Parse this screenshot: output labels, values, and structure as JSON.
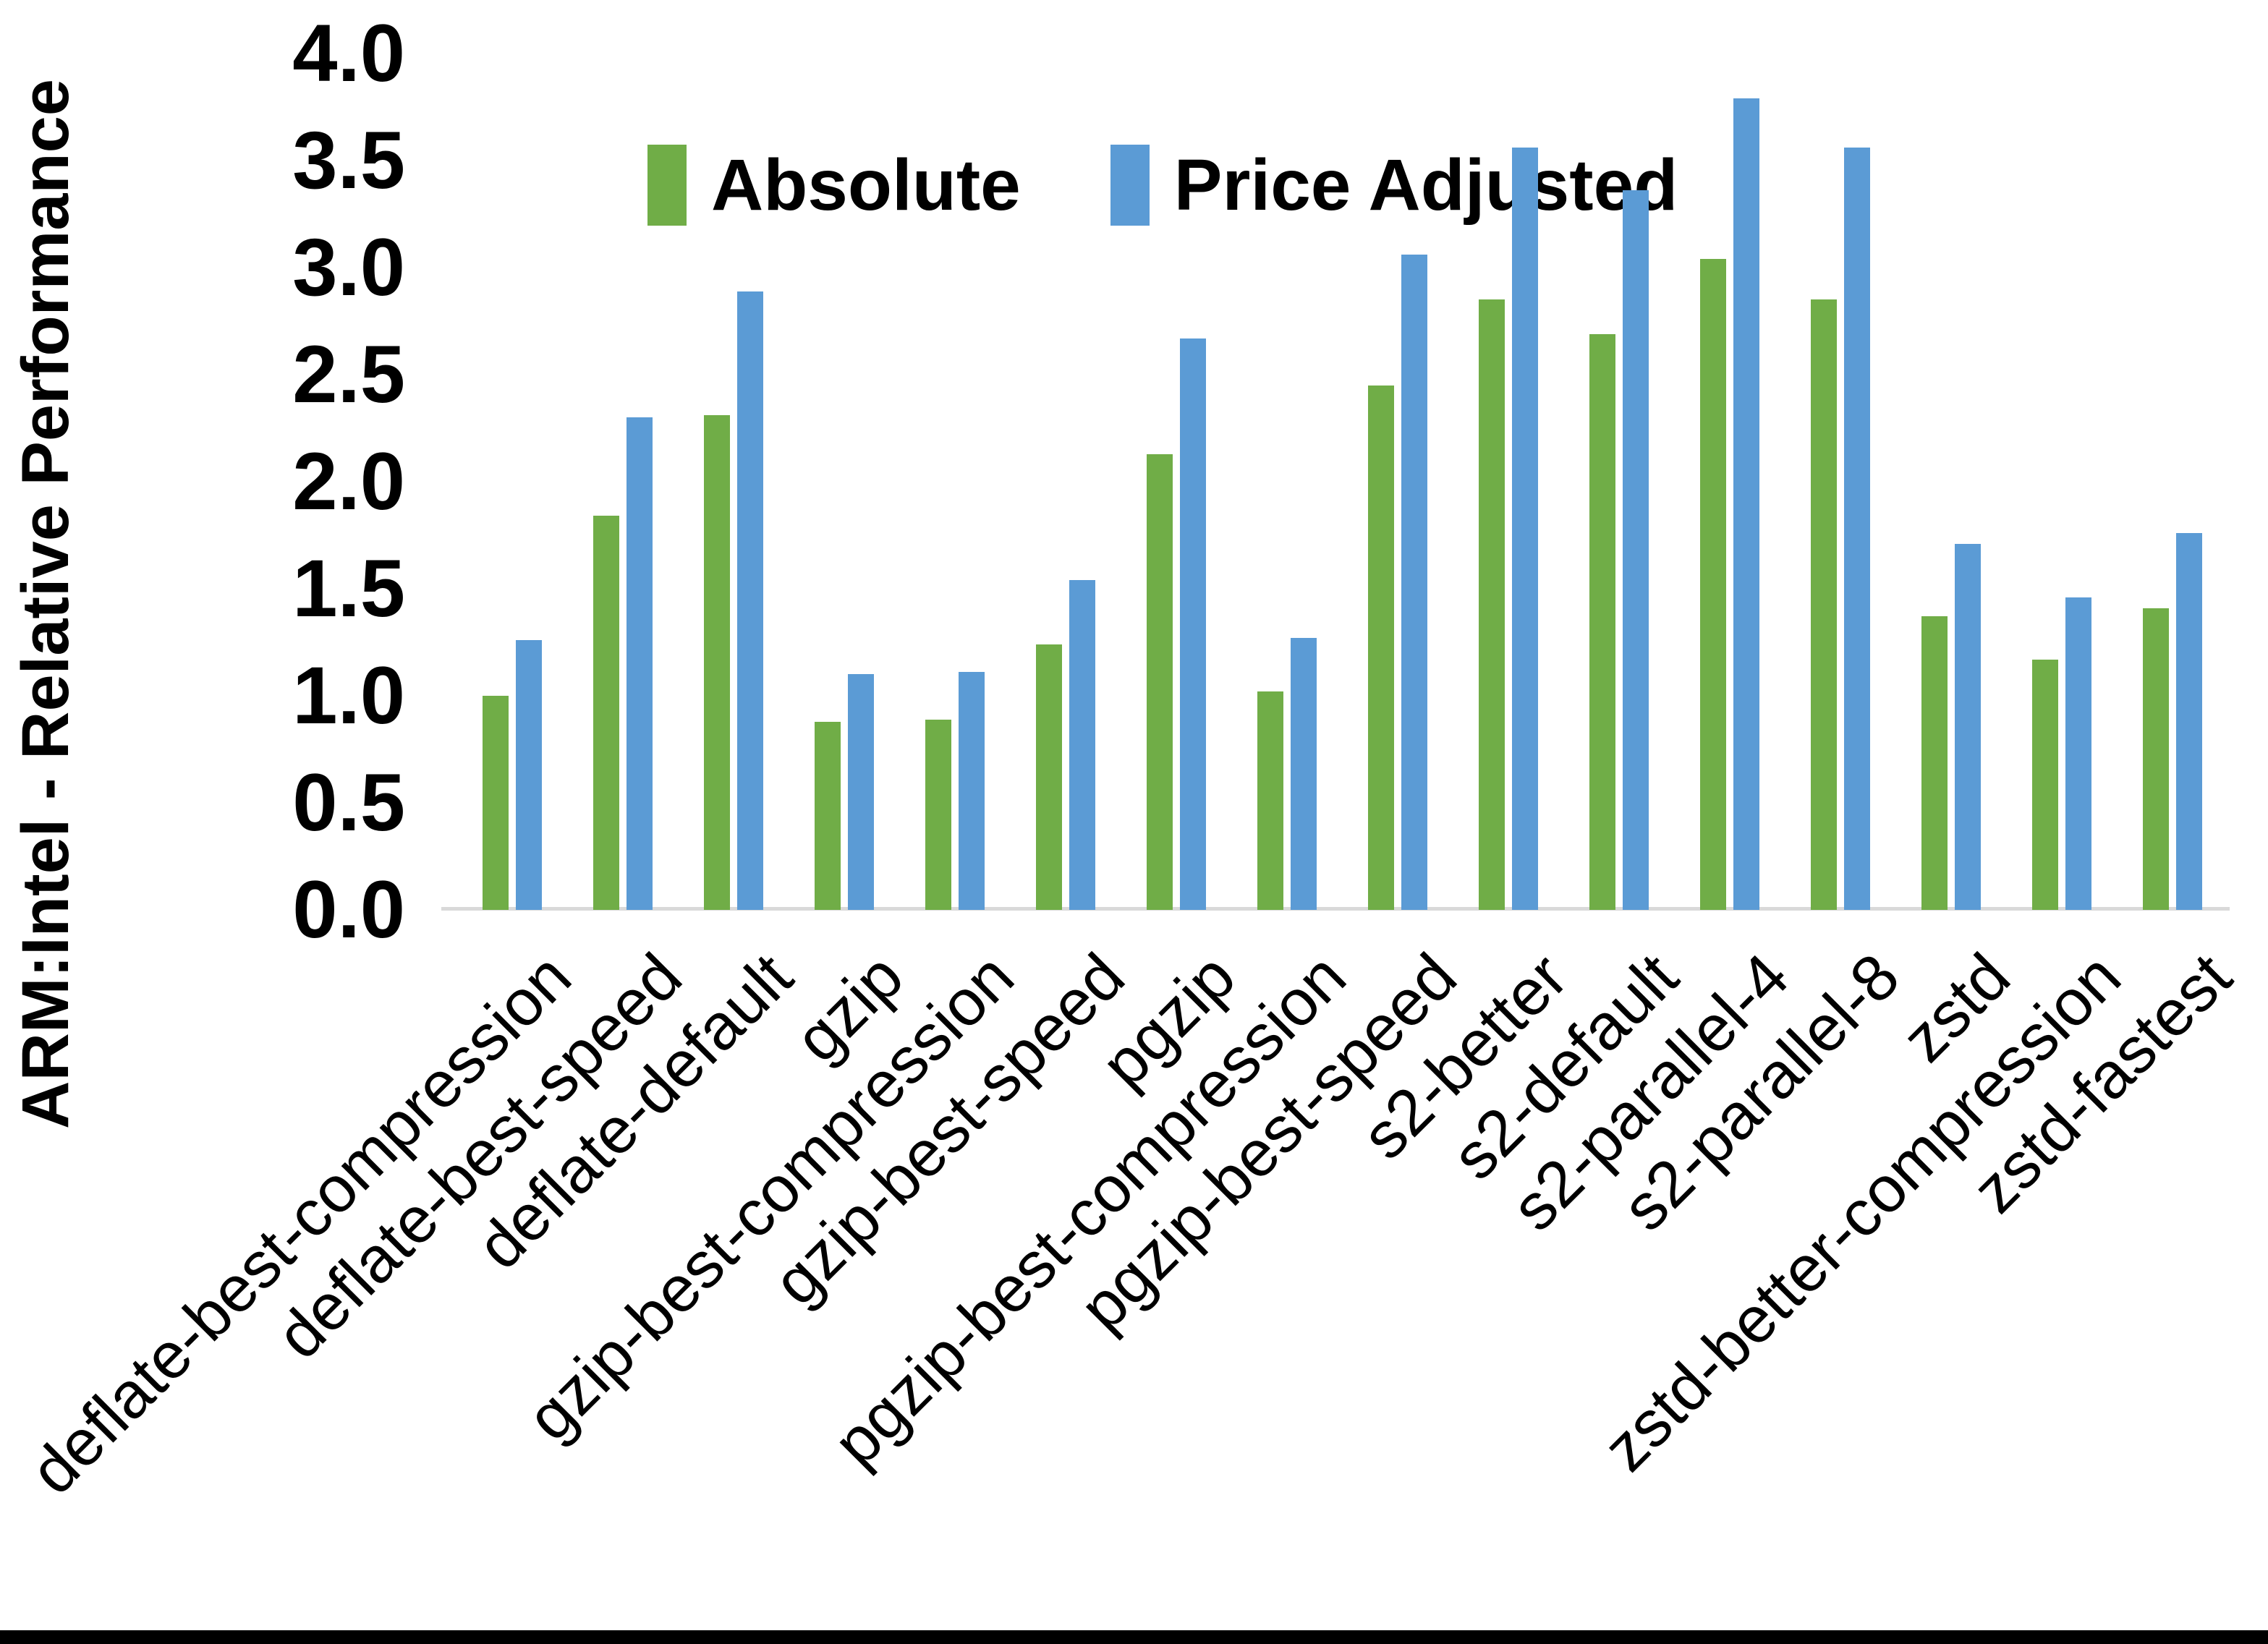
{
  "colors": {
    "background": "#FFFFFF",
    "absolute_bar": "#70AD47",
    "price_adjusted_bar": "#5B9BD5",
    "axis_line": "#D9D9D9",
    "text": "#000000",
    "bottom_border": "#000000"
  },
  "chart_data": {
    "type": "bar",
    "title": "",
    "xlabel": "",
    "ylabel": "ARM:Intel - Relative Performance",
    "ylim": [
      0.0,
      4.0
    ],
    "ytick_step": 0.5,
    "yticks": [
      "4.0",
      "3.5",
      "3.0",
      "2.5",
      "2.0",
      "1.5",
      "1.0",
      "0.5",
      "0.0"
    ],
    "grid": false,
    "legend_position": "top-center",
    "categories": [
      "deflate-best-compression",
      "deflate-best-speed",
      "deflate-default",
      "gzip",
      "gzip-best-compression",
      "gzip-best-speed",
      "pgzip",
      "pgzip-best-compression",
      "pgzip-best-speed",
      "s2-better",
      "s2-default",
      "s2-parallel-4",
      "s2-parallel-8",
      "zstd",
      "zstd-better-compression",
      "zstd-fastest"
    ],
    "series": [
      {
        "name": "Absolute",
        "color": "#70AD47",
        "values": [
          1.0,
          1.84,
          2.31,
          0.88,
          0.89,
          1.24,
          2.13,
          1.02,
          2.45,
          2.85,
          2.69,
          3.04,
          2.85,
          1.37,
          1.17,
          1.41
        ]
      },
      {
        "name": "Price Adjusted",
        "color": "#5B9BD5",
        "values": [
          1.26,
          2.3,
          2.89,
          1.1,
          1.11,
          1.54,
          2.67,
          1.27,
          3.06,
          3.56,
          3.36,
          3.79,
          3.56,
          1.71,
          1.46,
          1.76
        ]
      }
    ]
  }
}
